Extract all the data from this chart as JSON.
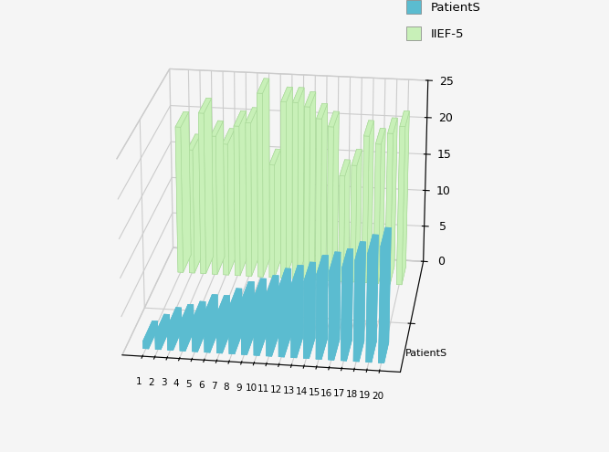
{
  "patients": [
    1,
    2,
    3,
    4,
    5,
    6,
    7,
    8,
    9,
    10,
    11,
    12,
    13,
    14,
    15,
    16,
    17,
    18,
    19,
    20
  ],
  "patients_values": [
    1,
    2,
    3,
    3.5,
    4,
    5,
    5,
    6,
    7,
    7.5,
    8,
    9,
    9.5,
    10,
    11,
    11.5,
    12,
    13,
    14,
    15
  ],
  "iief5_values": [
    20,
    17,
    22,
    19,
    18,
    20.5,
    21,
    25,
    15.5,
    24,
    24,
    23.5,
    22,
    21,
    14.5,
    16,
    20,
    19,
    20.5,
    21.5
  ],
  "bar_color_patients": "#5bbcd0",
  "bar_color_iief5": "#c8f0b8",
  "bar_edge_patients": "#5bbcd0",
  "bar_edge_iief5": "#a8d898",
  "legend_patients": "PatientS",
  "legend_iief5": "IIEF-5",
  "xlabel": "PatientS",
  "zticks": [
    0,
    5,
    10,
    15,
    20,
    25
  ],
  "zlim": [
    0,
    25
  ],
  "figure_bg": "#f5f5f5",
  "elev": 22,
  "azim": -82,
  "bar_width": 0.45,
  "bar_depth": 0.25
}
